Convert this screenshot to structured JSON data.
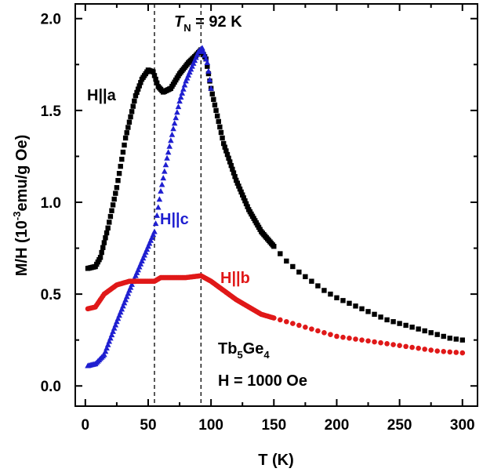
{
  "chart_data": {
    "type": "scatter",
    "xlabel": "T (K)",
    "ylabel_parts": {
      "main": "M/H (10",
      "exp": "-3",
      "unit": "emu/g Oe)"
    },
    "xlim": [
      -8,
      312
    ],
    "ylim": [
      -0.11,
      2.08
    ],
    "x_ticks": [
      0,
      50,
      100,
      150,
      200,
      250,
      300
    ],
    "y_ticks": [
      0.0,
      0.5,
      1.0,
      1.5,
      2.0
    ],
    "x_tick_labels": [
      "0",
      "50",
      "100",
      "150",
      "200",
      "250",
      "300"
    ],
    "y_tick_labels": [
      "0.0",
      "0.5",
      "1.0",
      "1.5",
      "2.0"
    ],
    "vlines": [
      55,
      92
    ],
    "annotations": {
      "tn_label": "T",
      "tn_sub": "N",
      "tn_value": " = 92 K",
      "compound_a": "Tb",
      "compound_sub1": "5",
      "compound_b": "Ge",
      "compound_sub2": "4",
      "field": "H = 1000 Oe"
    },
    "series": [
      {
        "name": "H||a",
        "color": "#000000",
        "marker": "square",
        "points": [
          [
            2,
            0.64
          ],
          [
            8,
            0.65
          ],
          [
            12,
            0.7
          ],
          [
            18,
            0.86
          ],
          [
            25,
            1.08
          ],
          [
            32,
            1.35
          ],
          [
            40,
            1.58
          ],
          [
            45,
            1.67
          ],
          [
            50,
            1.72
          ],
          [
            54,
            1.71
          ],
          [
            58,
            1.63
          ],
          [
            62,
            1.6
          ],
          [
            68,
            1.62
          ],
          [
            75,
            1.7
          ],
          [
            82,
            1.76
          ],
          [
            88,
            1.8
          ],
          [
            92,
            1.83
          ],
          [
            96,
            1.78
          ],
          [
            100,
            1.62
          ],
          [
            110,
            1.32
          ],
          [
            120,
            1.12
          ],
          [
            130,
            0.96
          ],
          [
            140,
            0.84
          ],
          [
            150,
            0.76
          ],
          [
            160,
            0.68
          ],
          [
            170,
            0.62
          ],
          [
            180,
            0.57
          ],
          [
            190,
            0.52
          ],
          [
            200,
            0.48
          ],
          [
            210,
            0.45
          ],
          [
            220,
            0.42
          ],
          [
            230,
            0.39
          ],
          [
            240,
            0.36
          ],
          [
            250,
            0.34
          ],
          [
            260,
            0.32
          ],
          [
            270,
            0.3
          ],
          [
            280,
            0.28
          ],
          [
            290,
            0.26
          ],
          [
            300,
            0.25
          ]
        ]
      },
      {
        "name": "H||c",
        "color": "#1f1fd0",
        "marker": "triangle",
        "points": [
          [
            2,
            0.11
          ],
          [
            8,
            0.12
          ],
          [
            15,
            0.17
          ],
          [
            25,
            0.35
          ],
          [
            35,
            0.52
          ],
          [
            45,
            0.68
          ],
          [
            55,
            0.84
          ],
          [
            60,
            1.06
          ],
          [
            65,
            1.24
          ],
          [
            70,
            1.4
          ],
          [
            75,
            1.55
          ],
          [
            80,
            1.66
          ],
          [
            85,
            1.74
          ],
          [
            90,
            1.82
          ],
          [
            93,
            1.84
          ],
          [
            97,
            1.76
          ],
          [
            100,
            1.62
          ]
        ]
      },
      {
        "name": "H||b",
        "color": "#e01818",
        "marker": "circle",
        "points": [
          [
            2,
            0.42
          ],
          [
            8,
            0.43
          ],
          [
            15,
            0.5
          ],
          [
            25,
            0.55
          ],
          [
            35,
            0.57
          ],
          [
            45,
            0.57
          ],
          [
            55,
            0.57
          ],
          [
            60,
            0.59
          ],
          [
            70,
            0.59
          ],
          [
            80,
            0.59
          ],
          [
            92,
            0.6
          ],
          [
            100,
            0.57
          ],
          [
            110,
            0.52
          ],
          [
            120,
            0.47
          ],
          [
            130,
            0.43
          ],
          [
            140,
            0.39
          ],
          [
            150,
            0.37
          ],
          [
            160,
            0.35
          ],
          [
            170,
            0.33
          ],
          [
            180,
            0.31
          ],
          [
            190,
            0.29
          ],
          [
            200,
            0.27
          ],
          [
            210,
            0.26
          ],
          [
            220,
            0.25
          ],
          [
            230,
            0.24
          ],
          [
            240,
            0.23
          ],
          [
            250,
            0.22
          ],
          [
            260,
            0.21
          ],
          [
            270,
            0.2
          ],
          [
            280,
            0.19
          ],
          [
            290,
            0.185
          ],
          [
            300,
            0.18
          ]
        ]
      }
    ]
  }
}
